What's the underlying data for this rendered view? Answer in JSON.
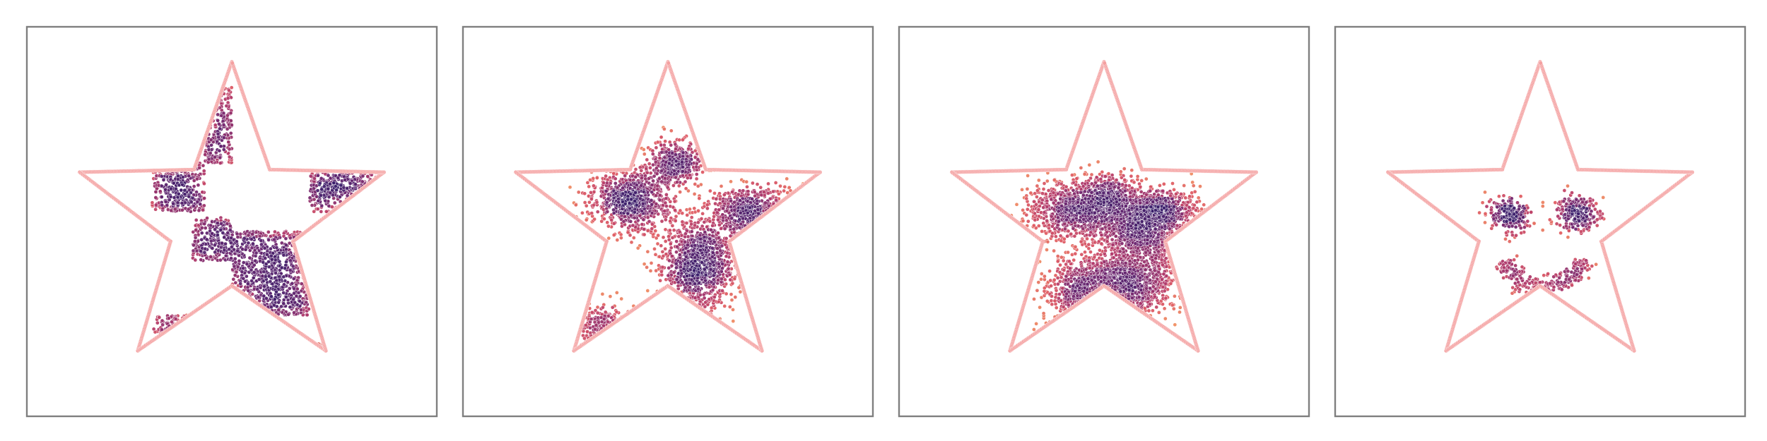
{
  "figure": {
    "panels": [
      {
        "id": "panel-1",
        "pattern": "checkerboard"
      },
      {
        "id": "panel-2",
        "pattern": "blobs"
      },
      {
        "id": "panel-3",
        "pattern": "mixed"
      },
      {
        "id": "panel-4",
        "pattern": "smiley"
      }
    ],
    "colors": {
      "frame": "#7f7f7f",
      "star_outline": "#f4a0a0",
      "point_dense": "#3b1f6b",
      "point_mid": "#b0396a",
      "point_sparse": "#f29463"
    }
  },
  "chart_data": [
    {
      "type": "scatter",
      "title": "",
      "xlabel": "",
      "ylabel": "",
      "xlim": [
        -1,
        1
      ],
      "ylim": [
        -1,
        1
      ],
      "grid": false,
      "ticks": "none",
      "boundary": {
        "shape": "star",
        "points": 5,
        "outer_radius": 0.82,
        "inner_radius": 0.33
      },
      "series": [
        {
          "distribution": "uniform-cells",
          "cells": [
            {
              "x": [
                -0.41,
                -0.14
              ],
              "y": [
                0.05,
                0.3
              ]
            },
            {
              "x": [
                -0.14,
                0.0
              ],
              "y": [
                0.3,
                0.7
              ]
            },
            {
              "x": [
                0.0,
                0.4
              ],
              "y": [
                -0.48,
                -0.05
              ]
            },
            {
              "x": [
                0.4,
                0.8
              ],
              "y": [
                0.05,
                0.3
              ]
            },
            {
              "x": [
                -0.4,
                -0.12
              ],
              "y": [
                -0.8,
                -0.48
              ]
            },
            {
              "x": [
                0.4,
                0.5
              ],
              "y": [
                -0.8,
                -0.62
              ]
            },
            {
              "x": [
                -0.2,
                0.0
              ],
              "y": [
                -0.2,
                0.02
              ]
            }
          ]
        }
      ]
    },
    {
      "type": "scatter",
      "title": "",
      "xlabel": "",
      "ylabel": "",
      "xlim": [
        -1,
        1
      ],
      "ylim": [
        -1,
        1
      ],
      "grid": false,
      "ticks": "none",
      "boundary": {
        "shape": "star",
        "points": 5,
        "outer_radius": 0.82,
        "inner_radius": 0.33
      },
      "series": [
        {
          "distribution": "gaussian-clusters",
          "clusters": [
            {
              "x": -0.19,
              "y": 0.11,
              "sx": 0.11,
              "sy": 0.08
            },
            {
              "x": 0.04,
              "y": 0.3,
              "sx": 0.07,
              "sy": 0.06
            },
            {
              "x": 0.16,
              "y": -0.22,
              "sx": 0.1,
              "sy": 0.12
            },
            {
              "x": 0.45,
              "y": 0.04,
              "sx": 0.12,
              "sy": 0.07
            },
            {
              "x": -0.28,
              "y": -0.58,
              "sx": 0.09,
              "sy": 0.07
            }
          ]
        }
      ]
    },
    {
      "type": "scatter",
      "title": "",
      "xlabel": "",
      "ylabel": "",
      "xlim": [
        -1,
        1
      ],
      "ylim": [
        -1,
        1
      ],
      "grid": false,
      "ticks": "none",
      "boundary": {
        "shape": "star",
        "points": 5,
        "outer_radius": 0.82,
        "inner_radius": 0.33
      },
      "series": [
        {
          "distribution": "gaussian-clusters",
          "clusters": [
            {
              "x": -0.14,
              "y": 0.06,
              "sx": 0.13,
              "sy": 0.08
            },
            {
              "x": 0.2,
              "y": -0.05,
              "sx": 0.12,
              "sy": 0.09
            },
            {
              "x": 0.15,
              "y": -0.32,
              "sx": 0.11,
              "sy": 0.09
            },
            {
              "x": -0.1,
              "y": -0.36,
              "sx": 0.1,
              "sy": 0.09
            },
            {
              "x": 0.05,
              "y": 0.14,
              "sx": 0.07,
              "sy": 0.05
            },
            {
              "x": 0.3,
              "y": 0.06,
              "sx": 0.09,
              "sy": 0.05
            }
          ]
        }
      ]
    },
    {
      "type": "scatter",
      "title": "",
      "xlabel": "",
      "ylabel": "",
      "xlim": [
        -1,
        1
      ],
      "ylim": [
        -1,
        1
      ],
      "grid": false,
      "ticks": "none",
      "boundary": {
        "shape": "star",
        "points": 5,
        "outer_radius": 0.82,
        "inner_radius": 0.33
      },
      "series": [
        {
          "distribution": "gaussian-clusters",
          "clusters": [
            {
              "x": -0.16,
              "y": 0.04,
              "sx": 0.055,
              "sy": 0.045
            },
            {
              "x": 0.19,
              "y": 0.04,
              "sx": 0.055,
              "sy": 0.045
            }
          ]
        },
        {
          "distribution": "arc",
          "arc": {
            "cx": 0.02,
            "cy": -0.12,
            "r": 0.22,
            "theta_start_deg": 200,
            "theta_end_deg": 340,
            "spread": 0.03
          }
        }
      ]
    }
  ]
}
